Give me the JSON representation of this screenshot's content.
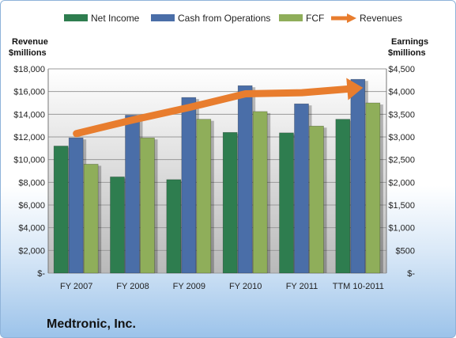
{
  "chart_data": {
    "type": "bar",
    "categories": [
      "FY 2007",
      "FY 2008",
      "FY 2009",
      "FY 2010",
      "FY 2011",
      "TTM 10-2011"
    ],
    "series": [
      {
        "name": "Net Income",
        "axis": "right",
        "color": "#2e7d4f",
        "values": [
          2800,
          2120,
          2060,
          3100,
          3090,
          3390
        ]
      },
      {
        "name": "Cash from Operations",
        "axis": "right",
        "color": "#4a6ea8",
        "values": [
          2980,
          3480,
          3870,
          4130,
          3730,
          4270
        ]
      },
      {
        "name": "FCF",
        "axis": "right",
        "color": "#8fae5a",
        "values": [
          2400,
          2980,
          3390,
          3560,
          3240,
          3750
        ]
      },
      {
        "name": "Revenues",
        "axis": "left",
        "type": "line",
        "color": "#e87d2e",
        "values": [
          12300,
          13500,
          14600,
          15800,
          15900,
          16300
        ]
      }
    ],
    "left_axis": {
      "title_line1": "Revenue",
      "title_line2": "$millions",
      "ylim": [
        0,
        18000
      ],
      "tick_labels": [
        "$-",
        "$2,000",
        "$4,000",
        "$6,000",
        "$8,000",
        "$10,000",
        "$12,000",
        "$14,000",
        "$16,000",
        "$18,000"
      ]
    },
    "right_axis": {
      "title_line1": "Earnings",
      "title_line2": "$millions",
      "ylim": [
        0,
        4500
      ],
      "tick_labels": [
        "$-",
        "$500",
        "$1,000",
        "$1,500",
        "$2,000",
        "$2,500",
        "$3,000",
        "$3,500",
        "$4,000",
        "$4,500"
      ]
    },
    "legend_placement": "top",
    "grid": true,
    "company": "Medtronic, Inc."
  }
}
